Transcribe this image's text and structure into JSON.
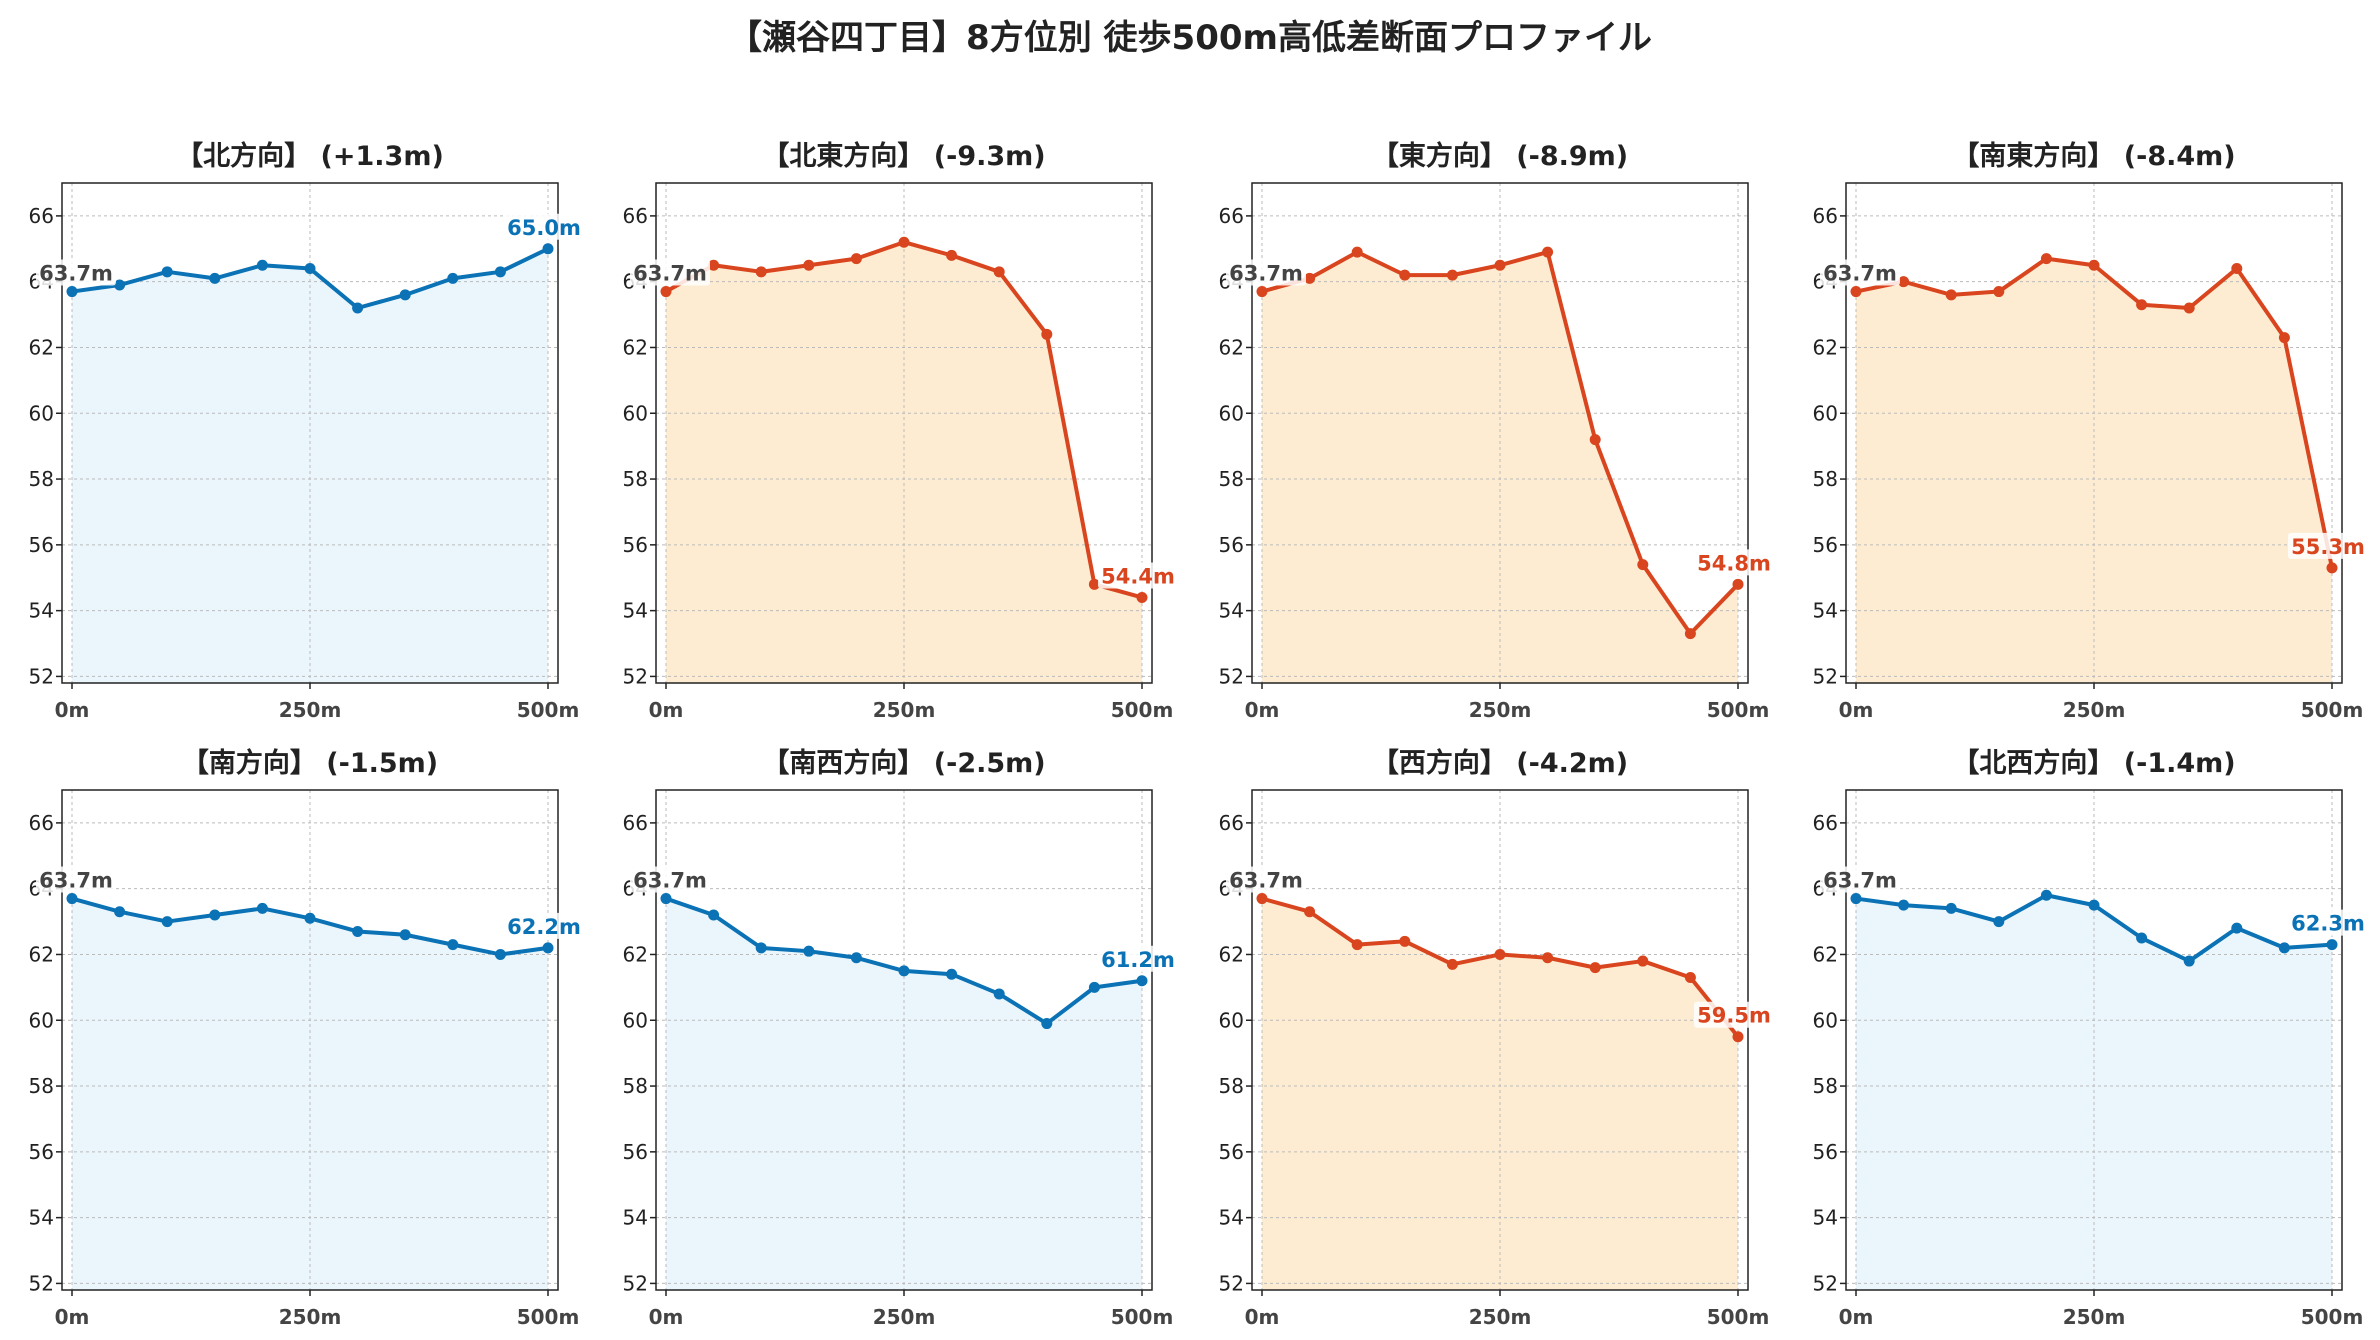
{
  "title": "【瀬谷四丁目】8方位別 徒歩500m高低差断面プロファイル",
  "colors": {
    "up": "#0a72b5",
    "up_fill": "#eaf6fc",
    "down": "#d9451e",
    "down_fill": "#fdecd1",
    "start_label": "#444444",
    "grid": "#bbbbbb"
  },
  "chart_data": [
    {
      "type": "area",
      "title": "【北方向】 (+1.3m)",
      "trend": "up",
      "x": [
        0,
        50,
        100,
        150,
        200,
        250,
        300,
        350,
        400,
        450,
        500
      ],
      "values": [
        63.7,
        63.9,
        64.3,
        64.1,
        64.5,
        64.4,
        63.2,
        63.6,
        64.1,
        64.3,
        65.0
      ],
      "start_label": "63.7m",
      "end_label": "65.0m",
      "ylim": [
        51.8,
        67.0
      ],
      "yticks": [
        "52",
        "54",
        "56",
        "58",
        "60",
        "62",
        "64",
        "66"
      ],
      "xticks": [
        "0m",
        "250m",
        "500m"
      ],
      "grid": true
    },
    {
      "type": "area",
      "title": "【北東方向】 (-9.3m)",
      "trend": "down",
      "x": [
        0,
        50,
        100,
        150,
        200,
        250,
        300,
        350,
        400,
        450,
        500
      ],
      "values": [
        63.7,
        64.5,
        64.3,
        64.5,
        64.7,
        65.2,
        64.8,
        64.3,
        62.4,
        54.8,
        54.4
      ],
      "start_label": "63.7m",
      "end_label": "54.4m",
      "ylim": [
        51.8,
        67.0
      ],
      "yticks": [
        "52",
        "54",
        "56",
        "58",
        "60",
        "62",
        "64",
        "66"
      ],
      "xticks": [
        "0m",
        "250m",
        "500m"
      ],
      "grid": true
    },
    {
      "type": "area",
      "title": "【東方向】 (-8.9m)",
      "trend": "down",
      "x": [
        0,
        50,
        100,
        150,
        200,
        250,
        300,
        350,
        400,
        450,
        500
      ],
      "values": [
        63.7,
        64.1,
        64.9,
        64.2,
        64.2,
        64.5,
        64.9,
        59.2,
        55.4,
        53.3,
        54.8
      ],
      "start_label": "63.7m",
      "end_label": "54.8m",
      "ylim": [
        51.8,
        67.0
      ],
      "yticks": [
        "52",
        "54",
        "56",
        "58",
        "60",
        "62",
        "64",
        "66"
      ],
      "xticks": [
        "0m",
        "250m",
        "500m"
      ],
      "grid": true
    },
    {
      "type": "area",
      "title": "【南東方向】 (-8.4m)",
      "trend": "down",
      "x": [
        0,
        50,
        100,
        150,
        200,
        250,
        300,
        350,
        400,
        450,
        500
      ],
      "values": [
        63.7,
        64.0,
        63.6,
        63.7,
        64.7,
        64.5,
        63.3,
        63.2,
        64.4,
        62.3,
        55.3
      ],
      "start_label": "63.7m",
      "end_label": "55.3m",
      "ylim": [
        51.8,
        67.0
      ],
      "yticks": [
        "52",
        "54",
        "56",
        "58",
        "60",
        "62",
        "64",
        "66"
      ],
      "xticks": [
        "0m",
        "250m",
        "500m"
      ],
      "grid": true
    },
    {
      "type": "area",
      "title": "【南方向】 (-1.5m)",
      "trend": "up",
      "x": [
        0,
        50,
        100,
        150,
        200,
        250,
        300,
        350,
        400,
        450,
        500
      ],
      "values": [
        63.7,
        63.3,
        63.0,
        63.2,
        63.4,
        63.1,
        62.7,
        62.6,
        62.3,
        62.0,
        62.2
      ],
      "start_label": "63.7m",
      "end_label": "62.2m",
      "ylim": [
        51.8,
        67.0
      ],
      "yticks": [
        "52",
        "54",
        "56",
        "58",
        "60",
        "62",
        "64",
        "66"
      ],
      "xticks": [
        "0m",
        "250m",
        "500m"
      ],
      "grid": true
    },
    {
      "type": "area",
      "title": "【南西方向】 (-2.5m)",
      "trend": "up",
      "x": [
        0,
        50,
        100,
        150,
        200,
        250,
        300,
        350,
        400,
        450,
        500
      ],
      "values": [
        63.7,
        63.2,
        62.2,
        62.1,
        61.9,
        61.5,
        61.4,
        60.8,
        59.9,
        61.0,
        61.2
      ],
      "start_label": "63.7m",
      "end_label": "61.2m",
      "ylim": [
        51.8,
        67.0
      ],
      "yticks": [
        "52",
        "54",
        "56",
        "58",
        "60",
        "62",
        "64",
        "66"
      ],
      "xticks": [
        "0m",
        "250m",
        "500m"
      ],
      "grid": true
    },
    {
      "type": "area",
      "title": "【西方向】 (-4.2m)",
      "trend": "down",
      "x": [
        0,
        50,
        100,
        150,
        200,
        250,
        300,
        350,
        400,
        450,
        500
      ],
      "values": [
        63.7,
        63.3,
        62.3,
        62.4,
        61.7,
        62.0,
        61.9,
        61.6,
        61.8,
        61.3,
        59.5
      ],
      "start_label": "63.7m",
      "end_label": "59.5m",
      "ylim": [
        51.8,
        67.0
      ],
      "yticks": [
        "52",
        "54",
        "56",
        "58",
        "60",
        "62",
        "64",
        "66"
      ],
      "xticks": [
        "0m",
        "250m",
        "500m"
      ],
      "grid": true
    },
    {
      "type": "area",
      "title": "【北西方向】 (-1.4m)",
      "trend": "up",
      "x": [
        0,
        50,
        100,
        150,
        200,
        250,
        300,
        350,
        400,
        450,
        500
      ],
      "values": [
        63.7,
        63.5,
        63.4,
        63.0,
        63.8,
        63.5,
        62.5,
        61.8,
        62.8,
        62.2,
        62.3
      ],
      "start_label": "63.7m",
      "end_label": "62.3m",
      "ylim": [
        51.8,
        67.0
      ],
      "yticks": [
        "52",
        "54",
        "56",
        "58",
        "60",
        "62",
        "64",
        "66"
      ],
      "xticks": [
        "0m",
        "250m",
        "500m"
      ],
      "grid": true
    }
  ]
}
